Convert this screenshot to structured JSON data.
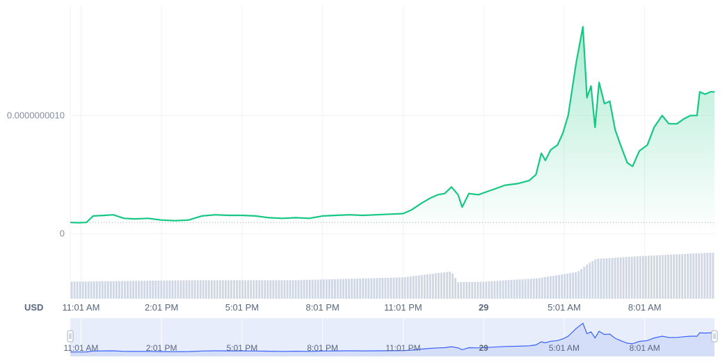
{
  "chart_data": {
    "type": "area",
    "currency_label": "USD",
    "y_ticks": [
      {
        "value": 0,
        "label": "0"
      },
      {
        "value": 1e-09,
        "label": "0.0000000010"
      }
    ],
    "ylim": [
      -5.5e-10,
      1.93e-09
    ],
    "baseline_value": 9.5e-11,
    "x_ticks": [
      "11:01 AM",
      "2:01 PM",
      "5:01 PM",
      "8:01 PM",
      "11:01 PM",
      "29",
      "5:01 AM",
      "8:01 AM"
    ],
    "x_tick_bold": [
      false,
      false,
      false,
      false,
      false,
      true,
      false,
      false
    ],
    "x_range_hours": [
      -0.4,
      23.6
    ],
    "price_series": [
      {
        "t": -0.4,
        "v": 9.5e-11
      },
      {
        "t": -0.1,
        "v": 9.3e-11
      },
      {
        "t": 0.2,
        "v": 9.5e-11
      },
      {
        "t": 0.45,
        "v": 1.5e-10
      },
      {
        "t": 0.9,
        "v": 1.55e-10
      },
      {
        "t": 1.2,
        "v": 1.6e-10
      },
      {
        "t": 1.6,
        "v": 1.3e-10
      },
      {
        "t": 2.0,
        "v": 1.25e-10
      },
      {
        "t": 2.5,
        "v": 1.3e-10
      },
      {
        "t": 3.0,
        "v": 1.15e-10
      },
      {
        "t": 3.5,
        "v": 1.1e-10
      },
      {
        "t": 4.0,
        "v": 1.15e-10
      },
      {
        "t": 4.5,
        "v": 1.5e-10
      },
      {
        "t": 5.0,
        "v": 1.6e-10
      },
      {
        "t": 5.5,
        "v": 1.55e-10
      },
      {
        "t": 6.0,
        "v": 1.55e-10
      },
      {
        "t": 6.5,
        "v": 1.5e-10
      },
      {
        "t": 7.0,
        "v": 1.35e-10
      },
      {
        "t": 7.5,
        "v": 1.3e-10
      },
      {
        "t": 8.0,
        "v": 1.35e-10
      },
      {
        "t": 8.5,
        "v": 1.3e-10
      },
      {
        "t": 9.0,
        "v": 1.5e-10
      },
      {
        "t": 9.5,
        "v": 1.55e-10
      },
      {
        "t": 10.0,
        "v": 1.6e-10
      },
      {
        "t": 10.5,
        "v": 1.55e-10
      },
      {
        "t": 11.0,
        "v": 1.6e-10
      },
      {
        "t": 11.5,
        "v": 1.65e-10
      },
      {
        "t": 12.0,
        "v": 1.7e-10
      },
      {
        "t": 12.3,
        "v": 2e-10
      },
      {
        "t": 12.7,
        "v": 2.6e-10
      },
      {
        "t": 13.0,
        "v": 3e-10
      },
      {
        "t": 13.3,
        "v": 3.3e-10
      },
      {
        "t": 13.55,
        "v": 3.4e-10
      },
      {
        "t": 13.8,
        "v": 3.95e-10
      },
      {
        "t": 14.05,
        "v": 3.3e-10
      },
      {
        "t": 14.2,
        "v": 2.25e-10
      },
      {
        "t": 14.45,
        "v": 3.4e-10
      },
      {
        "t": 14.8,
        "v": 3.3e-10
      },
      {
        "t": 15.3,
        "v": 3.7e-10
      },
      {
        "t": 15.8,
        "v": 4.1e-10
      },
      {
        "t": 16.3,
        "v": 4.25e-10
      },
      {
        "t": 16.7,
        "v": 4.5e-10
      },
      {
        "t": 16.95,
        "v": 5e-10
      },
      {
        "t": 17.15,
        "v": 6.8e-10
      },
      {
        "t": 17.3,
        "v": 6.2e-10
      },
      {
        "t": 17.5,
        "v": 7.1e-10
      },
      {
        "t": 17.75,
        "v": 7.5e-10
      },
      {
        "t": 17.95,
        "v": 8.5e-10
      },
      {
        "t": 18.15,
        "v": 1e-09
      },
      {
        "t": 18.45,
        "v": 1.45e-09
      },
      {
        "t": 18.7,
        "v": 1.75e-09
      },
      {
        "t": 18.85,
        "v": 1.15e-09
      },
      {
        "t": 19.0,
        "v": 1.25e-09
      },
      {
        "t": 19.15,
        "v": 9e-10
      },
      {
        "t": 19.3,
        "v": 1.28e-09
      },
      {
        "t": 19.5,
        "v": 1.1e-09
      },
      {
        "t": 19.7,
        "v": 1.12e-09
      },
      {
        "t": 19.9,
        "v": 8.8e-10
      },
      {
        "t": 20.1,
        "v": 7.5e-10
      },
      {
        "t": 20.35,
        "v": 6e-10
      },
      {
        "t": 20.55,
        "v": 5.7e-10
      },
      {
        "t": 20.8,
        "v": 7e-10
      },
      {
        "t": 21.1,
        "v": 7.5e-10
      },
      {
        "t": 21.35,
        "v": 9e-10
      },
      {
        "t": 21.65,
        "v": 1e-09
      },
      {
        "t": 21.9,
        "v": 9.3e-10
      },
      {
        "t": 22.2,
        "v": 9.3e-10
      },
      {
        "t": 22.45,
        "v": 9.7e-10
      },
      {
        "t": 22.7,
        "v": 1e-09
      },
      {
        "t": 22.95,
        "v": 1e-09
      },
      {
        "t": 23.05,
        "v": 1.2e-09
      },
      {
        "t": 23.25,
        "v": 1.18e-09
      },
      {
        "t": 23.45,
        "v": 1.2e-09
      },
      {
        "t": 23.6,
        "v": 1.2e-09
      }
    ],
    "volume_series": [
      {
        "t": -0.4,
        "v": 0.35
      },
      {
        "t": 4.0,
        "v": 0.38
      },
      {
        "t": 8.0,
        "v": 0.38
      },
      {
        "t": 12.0,
        "v": 0.44
      },
      {
        "t": 13.8,
        "v": 0.56
      },
      {
        "t": 14.05,
        "v": 0.34
      },
      {
        "t": 15.0,
        "v": 0.35
      },
      {
        "t": 17.0,
        "v": 0.42
      },
      {
        "t": 18.5,
        "v": 0.55
      },
      {
        "t": 18.9,
        "v": 0.72
      },
      {
        "t": 19.2,
        "v": 0.82
      },
      {
        "t": 21.0,
        "v": 0.88
      },
      {
        "t": 23.6,
        "v": 0.95
      }
    ],
    "colors": {
      "line": "#16c784",
      "area_top": "#16c784",
      "grid": "#eff2f5",
      "volume_bar": "#cfd6e4",
      "navigator_fill": "#e8edfc",
      "navigator_line": "#3861fb",
      "axis_text": "#58667e",
      "ytick_text": "#858ca2"
    },
    "grid": true
  }
}
